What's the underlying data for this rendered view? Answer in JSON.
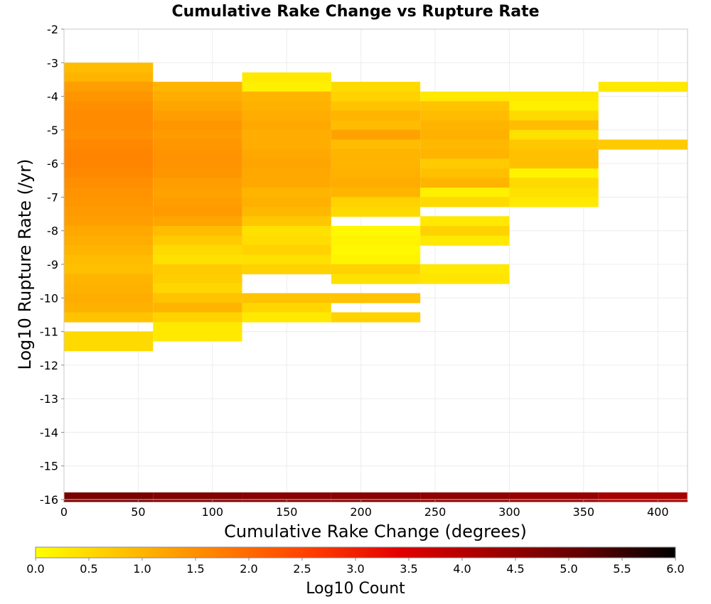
{
  "chart_data": {
    "type": "heatmap",
    "title": "Cumulative Rake Change vs Rupture Rate",
    "xlabel": "Cumulative Rake Change (degrees)",
    "ylabel": "Log10 Rupture Rate (/yr)",
    "xlim": [
      0,
      420
    ],
    "ylim": [
      -16,
      -2
    ],
    "x_ticks": [
      "0",
      "50",
      "100",
      "150",
      "200",
      "250",
      "300",
      "350",
      "400"
    ],
    "x_tick_values": [
      0,
      50,
      100,
      150,
      200,
      250,
      300,
      350,
      400
    ],
    "y_ticks": [
      "-2",
      "-3",
      "-4",
      "-5",
      "-6",
      "-7",
      "-8",
      "-9",
      "-10",
      "-11",
      "-12",
      "-13",
      "-14",
      "-15",
      "-16"
    ],
    "y_tick_values": [
      -2,
      -3,
      -4,
      -5,
      -6,
      -7,
      -8,
      -9,
      -10,
      -11,
      -12,
      -13,
      -14,
      -15,
      -16
    ],
    "grid": true,
    "x_bin_width": 60,
    "y_bin_height": 0.286,
    "colorbar": {
      "label": "Log10 Count",
      "range": [
        0,
        6
      ],
      "ticks": [
        "0.0",
        "0.5",
        "1.0",
        "1.5",
        "2.0",
        "2.5",
        "3.0",
        "3.5",
        "4.0",
        "4.5",
        "5.0",
        "5.5",
        "6.0"
      ],
      "tick_values": [
        0,
        0.5,
        1,
        1.5,
        2,
        2.5,
        3,
        3.5,
        4,
        4.5,
        5,
        5.5,
        6
      ],
      "colors": [
        "#ffff00",
        "#ffbf00",
        "#ff7f00",
        "#ff3f00",
        "#e00000",
        "#a00000",
        "#600000",
        "#000000"
      ]
    },
    "columns": [
      {
        "x_start": 0,
        "cells": [
          [
            -3.14,
            0.9
          ],
          [
            -3.43,
            1.0
          ],
          [
            -3.71,
            1.3
          ],
          [
            -4.0,
            1.4
          ],
          [
            -4.29,
            1.5
          ],
          [
            -4.57,
            1.55
          ],
          [
            -4.86,
            1.55
          ],
          [
            -5.14,
            1.5
          ],
          [
            -5.43,
            1.6
          ],
          [
            -5.71,
            1.65
          ],
          [
            -6.0,
            1.65
          ],
          [
            -6.29,
            1.6
          ],
          [
            -6.57,
            1.5
          ],
          [
            -6.86,
            1.45
          ],
          [
            -7.14,
            1.4
          ],
          [
            -7.43,
            1.35
          ],
          [
            -7.71,
            1.3
          ],
          [
            -8.0,
            1.15
          ],
          [
            -8.29,
            1.1
          ],
          [
            -8.57,
            1.0
          ],
          [
            -8.86,
            0.9
          ],
          [
            -9.14,
            0.85
          ],
          [
            -9.43,
            1.0
          ],
          [
            -9.71,
            1.05
          ],
          [
            -10.0,
            1.1
          ],
          [
            -10.29,
            1.05
          ],
          [
            -10.57,
            0.8
          ],
          [
            -11.14,
            0.5
          ],
          [
            -11.43,
            0.5
          ]
        ]
      },
      {
        "x_start": 60,
        "cells": [
          [
            -3.71,
            1.0
          ],
          [
            -4.0,
            1.1
          ],
          [
            -4.29,
            1.2
          ],
          [
            -4.57,
            1.3
          ],
          [
            -4.86,
            1.4
          ],
          [
            -5.14,
            1.35
          ],
          [
            -5.43,
            1.4
          ],
          [
            -5.71,
            1.45
          ],
          [
            -6.0,
            1.45
          ],
          [
            -6.29,
            1.4
          ],
          [
            -6.57,
            1.3
          ],
          [
            -6.86,
            1.25
          ],
          [
            -7.14,
            1.3
          ],
          [
            -7.43,
            1.35
          ],
          [
            -7.71,
            1.2
          ],
          [
            -8.0,
            0.9
          ],
          [
            -8.29,
            0.7
          ],
          [
            -8.57,
            0.5
          ],
          [
            -8.86,
            0.4
          ],
          [
            -9.14,
            0.7
          ],
          [
            -9.43,
            0.65
          ],
          [
            -9.71,
            0.55
          ],
          [
            -10.0,
            0.8
          ],
          [
            -10.29,
            1.0
          ],
          [
            -10.57,
            0.6
          ],
          [
            -10.86,
            0.3
          ],
          [
            -11.14,
            0.3
          ]
        ]
      },
      {
        "x_start": 120,
        "cells": [
          [
            -3.43,
            0.3
          ],
          [
            -3.71,
            0.2
          ],
          [
            -4.0,
            1.0
          ],
          [
            -4.29,
            1.05
          ],
          [
            -4.57,
            1.1
          ],
          [
            -4.86,
            1.15
          ],
          [
            -5.14,
            1.1
          ],
          [
            -5.43,
            1.1
          ],
          [
            -5.71,
            1.15
          ],
          [
            -6.0,
            1.2
          ],
          [
            -6.29,
            1.15
          ],
          [
            -6.57,
            1.15
          ],
          [
            -6.86,
            1.0
          ],
          [
            -7.14,
            1.05
          ],
          [
            -7.43,
            0.95
          ],
          [
            -7.71,
            0.75
          ],
          [
            -8.0,
            0.4
          ],
          [
            -8.29,
            0.45
          ],
          [
            -8.57,
            0.6
          ],
          [
            -8.86,
            0.4
          ],
          [
            -9.14,
            0.6
          ],
          [
            -10.0,
            0.8
          ],
          [
            -10.29,
            0.55
          ],
          [
            -10.57,
            0.3
          ]
        ]
      },
      {
        "x_start": 180,
        "cells": [
          [
            -3.71,
            0.5
          ],
          [
            -4.0,
            0.6
          ],
          [
            -4.29,
            0.8
          ],
          [
            -4.57,
            1.0
          ],
          [
            -4.86,
            0.9
          ],
          [
            -5.14,
            1.25
          ],
          [
            -5.43,
            0.9
          ],
          [
            -5.71,
            1.0
          ],
          [
            -6.0,
            1.0
          ],
          [
            -6.29,
            1.05
          ],
          [
            -6.57,
            1.1
          ],
          [
            -6.86,
            1.0
          ],
          [
            -7.14,
            0.6
          ],
          [
            -7.43,
            0.5
          ],
          [
            -8.0,
            0.1
          ],
          [
            -8.29,
            0.15
          ],
          [
            -8.57,
            0.1
          ],
          [
            -8.86,
            0.15
          ],
          [
            -9.14,
            0.6
          ],
          [
            -9.43,
            0.4
          ],
          [
            -10.0,
            0.8
          ],
          [
            -10.57,
            0.6
          ]
        ]
      },
      {
        "x_start": 240,
        "cells": [
          [
            -4.0,
            0.3
          ],
          [
            -4.29,
            0.8
          ],
          [
            -4.57,
            0.9
          ],
          [
            -4.86,
            1.0
          ],
          [
            -5.14,
            1.05
          ],
          [
            -5.43,
            0.95
          ],
          [
            -5.71,
            1.0
          ],
          [
            -6.0,
            0.7
          ],
          [
            -6.29,
            0.85
          ],
          [
            -6.57,
            1.0
          ],
          [
            -6.86,
            0.2
          ],
          [
            -7.14,
            0.5
          ],
          [
            -7.71,
            0.3
          ],
          [
            -8.0,
            0.6
          ],
          [
            -8.29,
            0.3
          ],
          [
            -9.14,
            0.3
          ],
          [
            -9.43,
            0.35
          ]
        ]
      },
      {
        "x_start": 300,
        "cells": [
          [
            -4.0,
            0.3
          ],
          [
            -4.29,
            0.2
          ],
          [
            -4.57,
            0.5
          ],
          [
            -4.86,
            0.9
          ],
          [
            -5.14,
            0.4
          ],
          [
            -5.43,
            0.75
          ],
          [
            -5.71,
            0.85
          ],
          [
            -6.0,
            0.85
          ],
          [
            -6.29,
            0.15
          ],
          [
            -6.57,
            0.5
          ],
          [
            -6.86,
            0.4
          ],
          [
            -7.14,
            0.3
          ]
        ]
      },
      {
        "x_start": 360,
        "cells": [
          [
            -3.71,
            0.3
          ],
          [
            -5.43,
            0.7
          ]
        ]
      }
    ],
    "bottom_row": {
      "y": -15.93,
      "values": [
        4.8,
        4.7,
        4.6,
        4.6,
        4.5,
        4.4,
        4.2
      ]
    }
  }
}
